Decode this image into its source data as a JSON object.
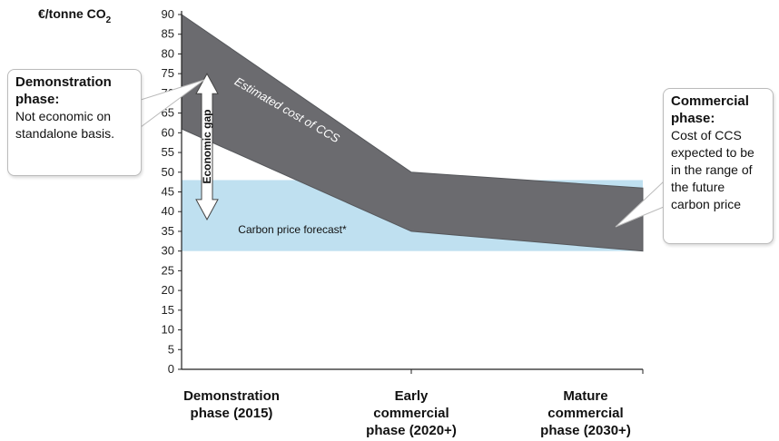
{
  "chart_data": {
    "type": "area",
    "ylabel": "€/tonne CO",
    "ylabel_subscript": "2",
    "ylim": [
      0,
      90
    ],
    "yticks": [
      0,
      5,
      10,
      15,
      20,
      25,
      30,
      35,
      40,
      45,
      50,
      55,
      60,
      65,
      70,
      75,
      80,
      85,
      90
    ],
    "categories": [
      "Demonstration\nphase (2015)",
      "Early\ncommercial\nphase (2020+)",
      "Mature\ncommercial\nphase (2030+)"
    ],
    "ccs_cost_band": {
      "label": "Estimated cost of CCS",
      "upper": [
        90,
        50,
        46
      ],
      "lower": [
        61,
        35,
        30
      ],
      "color": "#6b6b6f"
    },
    "carbon_price_band": {
      "label": "Carbon price forecast*",
      "upper": 48,
      "lower": 30,
      "color": "#bfe0f0"
    },
    "economic_gap": {
      "label": "Economic gap",
      "from": 75,
      "to": 38
    },
    "callouts": {
      "demonstration": {
        "head": "Demonstration phase:",
        "body": "Not economic on standalone basis."
      },
      "commercial": {
        "head": "Commercial phase:",
        "body": "Cost of CCS expected to be in the range of the future carbon price"
      }
    }
  }
}
